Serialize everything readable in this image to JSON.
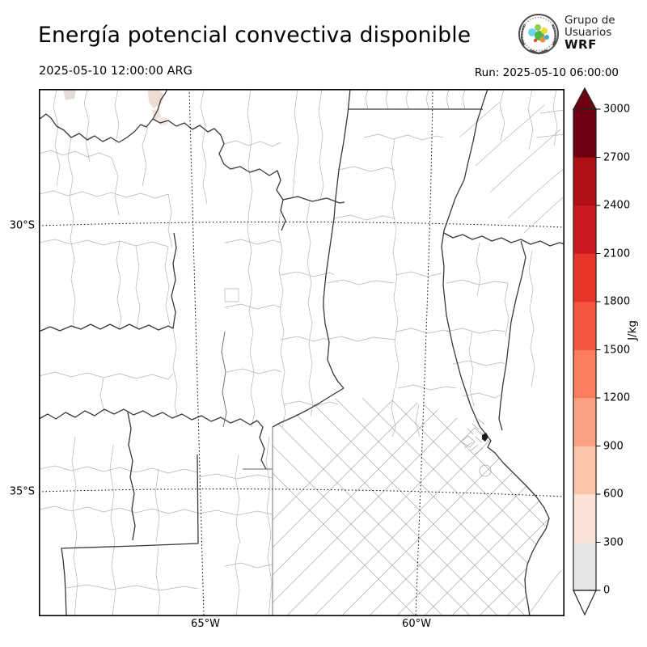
{
  "header": {
    "title": "Energía potencial convectiva disponible",
    "valid_time": "2025-05-10 12:00:00 ARG",
    "run_label": "Run: 2025-05-10 06:00:00",
    "logo": {
      "line1": "Grupo de",
      "line2": "Usuarios",
      "line3": "WRF"
    }
  },
  "chart_data": {
    "type": "heatmap",
    "title": "Energía potencial convectiva disponible",
    "field": "CAPE",
    "valid_time": "2025-05-10 12:00:00 ARG",
    "run_time": "2025-05-10 06:00:00",
    "x_axis": {
      "ticks": [
        "65°W",
        "60°W"
      ]
    },
    "y_axis": {
      "ticks": [
        "30°S",
        "35°S"
      ]
    },
    "colorbar": {
      "label": "J/kg",
      "ticks": [
        0,
        300,
        600,
        900,
        1200,
        1500,
        1800,
        2100,
        2400,
        2700,
        3000
      ],
      "segment_colors": [
        "#e8e6e4",
        "#fde3d7",
        "#fcc4ab",
        "#fca183",
        "#fb7d5d",
        "#f6583f",
        "#e6342b",
        "#cb1a1f",
        "#af1117",
        "#6d0112"
      ],
      "over_color": "#6d0112",
      "under_color": "#ffffff",
      "outline_color": "#222222"
    },
    "values_summary": "CAPE ≈ 0 J/kg over nearly the whole domain; a few faint patches below 300 J/kg near the northern map edge."
  }
}
